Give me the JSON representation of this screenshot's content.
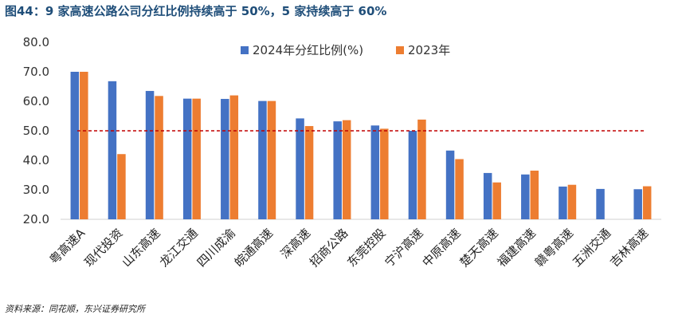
{
  "title": "图44：9 家高速公路公司分红比例持续高于 50%，5 家持续高于 60%",
  "source": "资料来源：同花顺，东兴证券研究所",
  "colors": {
    "series1": "#4472c4",
    "series2": "#ed7d31",
    "refline": "#c00000"
  },
  "chart_data": {
    "type": "bar",
    "categories": [
      "粤高速A",
      "现代投资",
      "山东高速",
      "龙江交通",
      "四川成渝",
      "皖通高速",
      "深高速",
      "招商公路",
      "东莞控股",
      "宁沪高速",
      "中原高速",
      "楚天高速",
      "福建高速",
      "赣粤高速",
      "五洲交通",
      "吉林高速"
    ],
    "series": [
      {
        "name": "2024年分红比例(%)",
        "values": [
          70.0,
          66.8,
          63.5,
          60.9,
          60.8,
          60.1,
          54.2,
          53.2,
          51.8,
          50.0,
          43.3,
          35.7,
          35.2,
          31.1,
          30.3,
          30.2
        ]
      },
      {
        "name": "2023年",
        "values": [
          70.0,
          42.1,
          61.8,
          60.9,
          62.0,
          60.1,
          51.6,
          53.6,
          50.7,
          53.8,
          40.4,
          32.5,
          36.5,
          31.7,
          null,
          31.2
        ]
      }
    ],
    "yticks": [
      "20.0",
      "30.0",
      "40.0",
      "50.0",
      "60.0",
      "70.0",
      "80.0"
    ],
    "ylim": [
      20,
      80
    ],
    "reference_line": {
      "value": 50,
      "style": "dashed"
    },
    "legend_position": "top-right",
    "grid": false
  }
}
